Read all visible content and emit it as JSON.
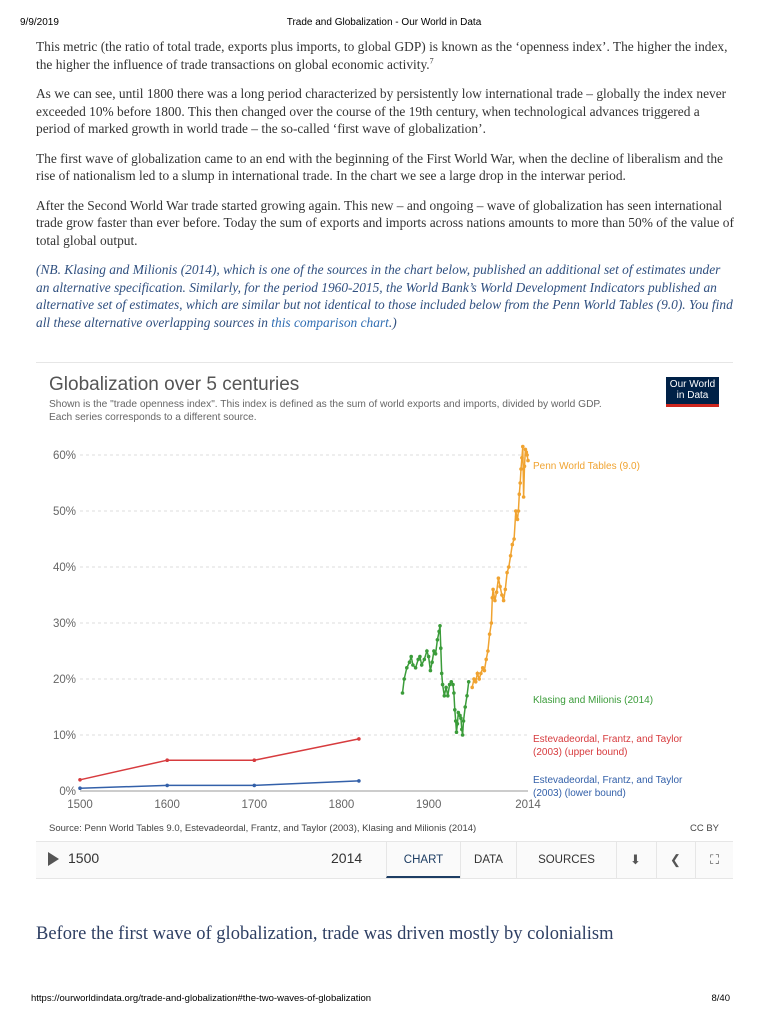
{
  "print_header": {
    "date": "9/9/2019",
    "title": "Trade and Globalization - Our World in Data"
  },
  "print_footer": {
    "url": "https://ourworldindata.org/trade-and-globalization#the-two-waves-of-globalization",
    "page": "8/40"
  },
  "article": {
    "p1": "This metric (the ratio of total trade, exports plus imports, to global GDP) is known as the ‘openness index’. The higher the index, the higher the influence of trade transactions on global economic activity.",
    "p1_footnote": "7",
    "p2": "As we can see, until 1800 there was a long period characterized by persistently low international trade – globally the index never exceeded 10% before 1800. This then changed over the course of the 19th century, when technological advances triggered a period of marked growth in world trade – the so-called ‘first wave of globalization’.",
    "p3": "The first wave of globalization came to an end with the beginning of the First World War, when the decline of liberalism and the rise of nationalism led to a slump in international trade. In the chart we see a large drop in the interwar period.",
    "p4": "After the Second World War trade started growing again. This new – and ongoing – wave of globalization has seen international trade grow faster than ever before. Today the sum of exports and imports across nations amounts to more than 50% of the value of total global output.",
    "note_text": "(NB. Klasing and Milionis (2014), which is one of the sources in the chart below, published an additional set of estimates under an alternative specification. Similarly, for the period 1960-2015, the World Bank’s World Development Indicators published an alternative set of estimates, which are similar but not identical to those included below from the Penn World Tables (9.0). You find all these alternative overlapping sources in ",
    "note_link": "this comparison chart",
    "note_end": ".)",
    "next_heading": "Before the first wave of globalization, trade was driven mostly by colonialism"
  },
  "grapher": {
    "title": "Globalization over 5 centuries",
    "subtitle": "Shown is the \"trade openness index\". This index is defined as the sum of world exports and imports, divided by world GDP. Each series corresponds to a different source.",
    "logo_line1": "Our World",
    "logo_line2": "in Data",
    "source": "Source: Penn World Tables 9.0, Estevadeordal, Frantz, and Taylor (2003), Klasing and Milionis (2014)",
    "license": "CC BY",
    "controls": {
      "start_year": "1500",
      "end_year": "2014",
      "tabs": [
        "CHART",
        "DATA",
        "SOURCES"
      ],
      "active_tab": "CHART"
    }
  },
  "chart_data": {
    "type": "line",
    "title": "Globalization over 5 centuries",
    "xlabel": "",
    "ylabel": "",
    "xlim": [
      1500,
      2014
    ],
    "ylim": [
      0,
      60
    ],
    "x_ticks": [
      "1500",
      "1600",
      "1700",
      "1800",
      "1900",
      "2014"
    ],
    "y_ticks": [
      "0%",
      "10%",
      "20%",
      "30%",
      "40%",
      "50%",
      "60%"
    ],
    "grid": "horizontal dashed",
    "series": [
      {
        "name": "Estevadeordal, Frantz, and Taylor (2003) (lower bound)",
        "color": "#3360a9",
        "label_lines": [
          "Estevadeordal, Frantz, and Taylor",
          "(2003) (lower bound)"
        ],
        "points": [
          [
            1500,
            0.5
          ],
          [
            1600,
            1.0
          ],
          [
            1700,
            1.0
          ],
          [
            1820,
            1.8
          ]
        ]
      },
      {
        "name": "Estevadeordal, Frantz, and Taylor (2003) (upper bound)",
        "color": "#d73b3e",
        "label_lines": [
          "Estevadeordal, Frantz, and Taylor",
          "(2003) (upper bound)"
        ],
        "points": [
          [
            1500,
            2.0
          ],
          [
            1600,
            5.5
          ],
          [
            1700,
            5.5
          ],
          [
            1820,
            9.3
          ]
        ]
      },
      {
        "name": "Klasing and Milionis (2014)",
        "color": "#3b9c3a",
        "label_lines": [
          "Klasing and Milionis (2014)"
        ],
        "points": [
          [
            1870,
            17.5
          ],
          [
            1872,
            20.0
          ],
          [
            1875,
            22.0
          ],
          [
            1878,
            23.0
          ],
          [
            1880,
            24.0
          ],
          [
            1882,
            22.5
          ],
          [
            1885,
            22.0
          ],
          [
            1888,
            23.5
          ],
          [
            1890,
            24.0
          ],
          [
            1892,
            22.5
          ],
          [
            1895,
            23.5
          ],
          [
            1898,
            25.0
          ],
          [
            1900,
            24.0
          ],
          [
            1902,
            21.5
          ],
          [
            1904,
            23.0
          ],
          [
            1906,
            25.0
          ],
          [
            1908,
            24.5
          ],
          [
            1910,
            27.0
          ],
          [
            1912,
            28.5
          ],
          [
            1913,
            29.5
          ],
          [
            1914,
            25.5
          ],
          [
            1915,
            21.0
          ],
          [
            1916,
            19.0
          ],
          [
            1918,
            17.0
          ],
          [
            1920,
            18.5
          ],
          [
            1922,
            17.0
          ],
          [
            1924,
            19.0
          ],
          [
            1926,
            19.5
          ],
          [
            1928,
            19.0
          ],
          [
            1929,
            17.5
          ],
          [
            1930,
            14.5
          ],
          [
            1931,
            12.5
          ],
          [
            1932,
            10.5
          ],
          [
            1933,
            12.0
          ],
          [
            1934,
            14.0
          ],
          [
            1936,
            13.5
          ],
          [
            1937,
            13.0
          ],
          [
            1938,
            11.0
          ],
          [
            1939,
            10.0
          ],
          [
            1940,
            12.5
          ],
          [
            1942,
            15.0
          ],
          [
            1944,
            17.0
          ],
          [
            1946,
            19.5
          ]
        ]
      },
      {
        "name": "Penn World Tables (9.0)",
        "color": "#f0a330",
        "label_lines": [
          "Penn World Tables (9.0)"
        ],
        "points": [
          [
            1950,
            18.5
          ],
          [
            1952,
            20.0
          ],
          [
            1954,
            19.5
          ],
          [
            1956,
            21.0
          ],
          [
            1958,
            20.0
          ],
          [
            1960,
            21.0
          ],
          [
            1962,
            22.0
          ],
          [
            1964,
            21.5
          ],
          [
            1966,
            23.5
          ],
          [
            1968,
            25.0
          ],
          [
            1970,
            28.0
          ],
          [
            1972,
            30.0
          ],
          [
            1973,
            34.5
          ],
          [
            1974,
            36.0
          ],
          [
            1976,
            34.0
          ],
          [
            1978,
            35.5
          ],
          [
            1980,
            38.0
          ],
          [
            1982,
            36.5
          ],
          [
            1984,
            35.0
          ],
          [
            1986,
            34.0
          ],
          [
            1988,
            36.0
          ],
          [
            1990,
            39.0
          ],
          [
            1992,
            40.0
          ],
          [
            1994,
            42.0
          ],
          [
            1996,
            44.0
          ],
          [
            1998,
            45.0
          ],
          [
            2000,
            50.0
          ],
          [
            2001,
            49.0
          ],
          [
            2002,
            48.5
          ],
          [
            2003,
            50.0
          ],
          [
            2004,
            53.0
          ],
          [
            2005,
            55.0
          ],
          [
            2006,
            57.5
          ],
          [
            2007,
            59.5
          ],
          [
            2008,
            61.5
          ],
          [
            2009,
            52.5
          ],
          [
            2010,
            58.0
          ],
          [
            2011,
            61.0
          ],
          [
            2012,
            60.5
          ],
          [
            2013,
            60.0
          ],
          [
            2014,
            59.0
          ]
        ]
      }
    ]
  }
}
